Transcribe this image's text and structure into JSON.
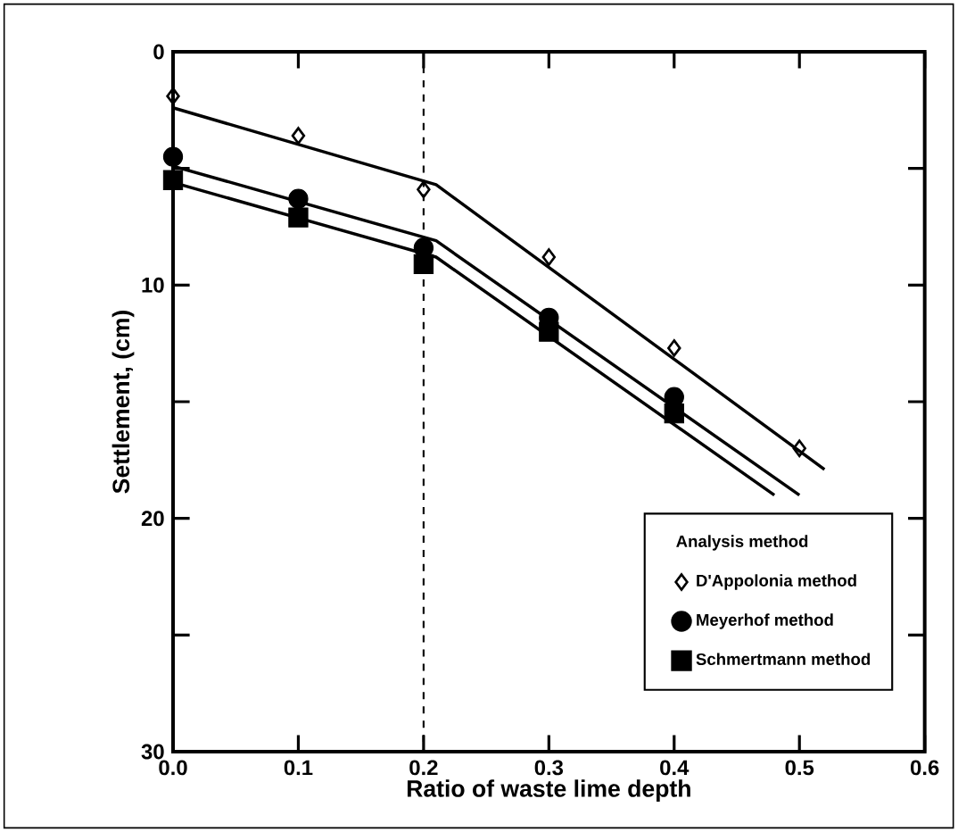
{
  "chart_data": {
    "type": "scatter",
    "xlabel": "Ratio of waste lime depth",
    "ylabel": "Settlement, (cm)",
    "legend_title": "Analysis method",
    "xlim": [
      0,
      0.6
    ],
    "xticks": [
      {
        "value": 0,
        "label": "0.0"
      },
      0.1,
      0.2,
      0.3,
      0.4,
      0.5,
      0.6
    ],
    "ylim": [
      30,
      0
    ],
    "yticks": [
      0,
      {
        "value": 5,
        "label": null
      },
      10,
      {
        "value": 15,
        "label": null
      },
      20,
      {
        "value": 25,
        "label": null
      },
      30
    ],
    "grid": false,
    "legend": "bottom right",
    "ref_lines": [
      {
        "axis": "x",
        "value": 0.2,
        "line_style": "dashed"
      }
    ],
    "series": [
      {
        "name": "D'Appolonia method",
        "marker": "diamond",
        "color": "#000000",
        "x": [
          0,
          0.1,
          0.2,
          0.3,
          0.4,
          0.5
        ],
        "values": [
          1.9,
          3.6,
          5.9,
          8.8,
          12.7,
          17.0
        ]
      },
      {
        "name": "Meyerhof method",
        "marker": "circle",
        "color": "#000000",
        "x": [
          0,
          0.1,
          0.2,
          0.3,
          0.4
        ],
        "values": [
          4.5,
          6.3,
          8.4,
          11.4,
          14.8
        ]
      },
      {
        "name": "Schmertmann method",
        "marker": "square",
        "color": "#000000",
        "x": [
          0,
          0.1,
          0.2,
          0.3,
          0.4
        ],
        "values": [
          5.5,
          7.1,
          9.1,
          12.0,
          15.5
        ]
      },
      {
        "type": "line",
        "marker": "none",
        "color": "#000000",
        "x": [
          0,
          0.21,
          0.52
        ],
        "values": [
          2.4,
          5.7,
          17.9
        ]
      },
      {
        "type": "line",
        "marker": "none",
        "color": "#000000",
        "x": [
          0,
          0.21,
          0.5
        ],
        "values": [
          4.9,
          8.1,
          19.0
        ]
      },
      {
        "type": "line",
        "marker": "none",
        "color": "#000000",
        "x": [
          0,
          0.21,
          0.48
        ],
        "values": [
          5.6,
          8.8,
          19.0
        ]
      }
    ]
  }
}
